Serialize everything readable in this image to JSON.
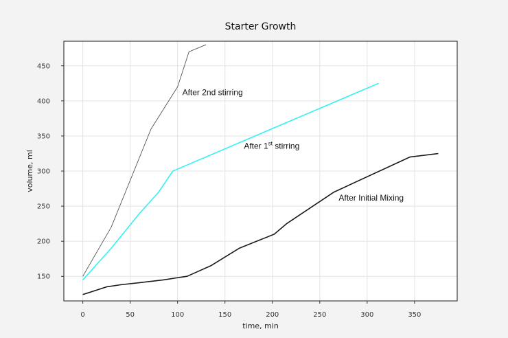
{
  "chart_data": {
    "type": "line",
    "title": "Starter Growth",
    "xlabel": "time, min",
    "ylabel": "volume, ml",
    "xlim": [
      -20,
      395
    ],
    "ylim": [
      115,
      485
    ],
    "grid": true,
    "legend": "none",
    "xticks": [
      0,
      50,
      100,
      150,
      200,
      250,
      300,
      350
    ],
    "yticks": [
      150,
      200,
      250,
      300,
      350,
      400,
      450
    ],
    "series": [
      {
        "color": "#555555",
        "stroke_width": 0.9,
        "x": [
          0,
          30,
          72,
          100,
          112,
          130
        ],
        "y": [
          150,
          220,
          360,
          420,
          470,
          480
        ]
      },
      {
        "color": "#33f2f2",
        "stroke_width": 1.6,
        "x": [
          0,
          30,
          60,
          80,
          95,
          312
        ],
        "y": [
          145,
          190,
          240,
          270,
          300,
          425
        ]
      },
      {
        "color": "#1a1a1a",
        "stroke_width": 1.6,
        "x": [
          0,
          25,
          40,
          60,
          85,
          110,
          135,
          165,
          202,
          215,
          265,
          345,
          375
        ],
        "y": [
          124,
          135,
          138,
          141,
          145,
          150,
          165,
          190,
          210,
          225,
          270,
          320,
          325
        ]
      }
    ],
    "annotations": [
      {
        "text": "After 2nd stirring",
        "x": 105,
        "y": 408
      },
      {
        "base": "After 1",
        "sup": "st",
        "rest": " stirring",
        "x": 170,
        "y": 332
      },
      {
        "text": "After Initial Mixing",
        "x": 270,
        "y": 258
      }
    ]
  }
}
